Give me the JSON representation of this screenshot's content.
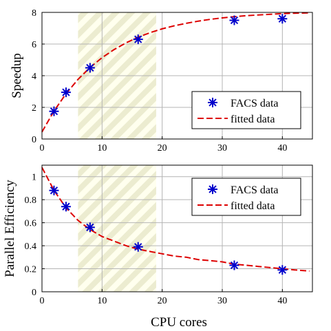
{
  "chart_data": [
    {
      "type": "scatter",
      "xlabel": "",
      "ylabel": "Speedup",
      "xlim": [
        0,
        45
      ],
      "ylim": [
        0,
        8
      ],
      "xticks": [
        0,
        10,
        20,
        30,
        40
      ],
      "yticks": [
        0,
        2,
        4,
        6,
        8
      ],
      "grid": true,
      "shaded_region": [
        6,
        19
      ],
      "legend_position": "lower-right",
      "series": [
        {
          "name": "FACS data",
          "style": "asterisk-markers",
          "color": "#0000cc",
          "x": [
            2,
            4,
            8,
            16,
            32,
            40
          ],
          "y": [
            1.75,
            2.95,
            4.5,
            6.3,
            7.5,
            7.6
          ]
        },
        {
          "name": "fitted data",
          "style": "dashed-line",
          "color": "#dd0000",
          "x": [
            0,
            2,
            4,
            6,
            8,
            10,
            12,
            14,
            16,
            18,
            20,
            22,
            24,
            26,
            28,
            30,
            32,
            34,
            36,
            38,
            40,
            42,
            44.5
          ],
          "y": [
            0.45,
            1.77,
            2.86,
            3.77,
            4.52,
            5.14,
            5.65,
            6.08,
            6.43,
            6.72,
            6.96,
            7.15,
            7.31,
            7.45,
            7.56,
            7.65,
            7.73,
            7.79,
            7.84,
            7.88,
            7.92,
            7.95,
            7.97
          ]
        }
      ]
    },
    {
      "type": "scatter",
      "xlabel": "CPU cores",
      "ylabel": "Parallel Efficiency",
      "xlim": [
        0,
        45
      ],
      "ylim": [
        0,
        1.1
      ],
      "xticks": [
        0,
        10,
        20,
        30,
        40
      ],
      "yticks": [
        0,
        0.2,
        0.4,
        0.6,
        0.8,
        1
      ],
      "grid": true,
      "shaded_region": [
        6,
        19
      ],
      "legend_position": "top-right",
      "series": [
        {
          "name": "FACS data",
          "style": "asterisk-markers",
          "color": "#0000cc",
          "x": [
            2,
            4,
            8,
            16,
            32,
            40
          ],
          "y": [
            0.88,
            0.74,
            0.56,
            0.39,
            0.23,
            0.19
          ]
        },
        {
          "name": "fitted data",
          "style": "dashed-line",
          "color": "#dd0000",
          "x": [
            0,
            2,
            4,
            6,
            8,
            10,
            12,
            14,
            16,
            18,
            20,
            22,
            24,
            26,
            28,
            30,
            32,
            34,
            36,
            38,
            40,
            42,
            44.5
          ],
          "y": [
            1.08,
            0.88,
            0.73,
            0.62,
            0.54,
            0.48,
            0.44,
            0.4,
            0.37,
            0.35,
            0.33,
            0.31,
            0.3,
            0.28,
            0.27,
            0.26,
            0.24,
            0.23,
            0.22,
            0.21,
            0.2,
            0.19,
            0.18
          ]
        }
      ]
    }
  ]
}
